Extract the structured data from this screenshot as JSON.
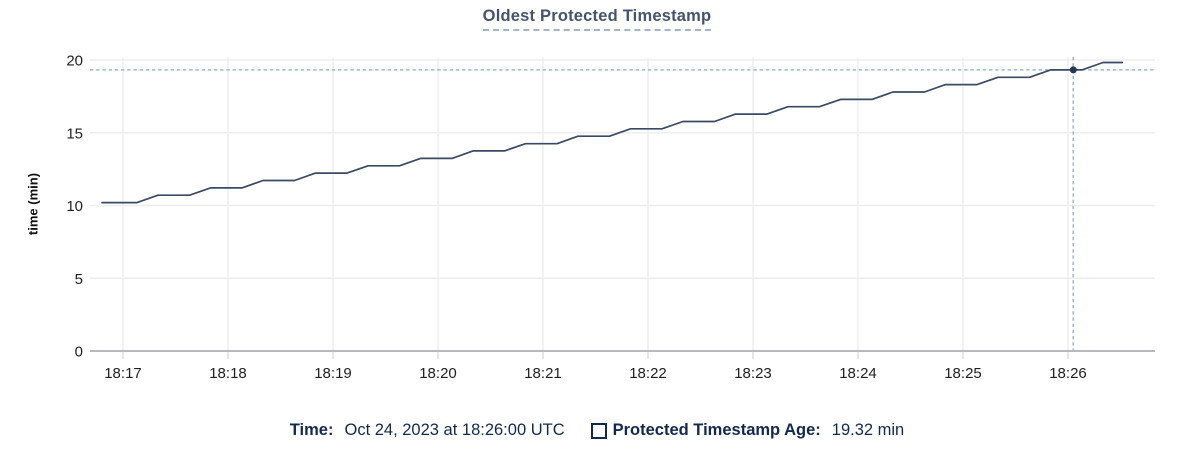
{
  "chart_data": {
    "type": "line",
    "title": "Oldest Protected Timestamp",
    "xlabel": "",
    "ylabel": "time (min)",
    "ylim": [
      0,
      20
    ],
    "grid": true,
    "y_ticks": [
      0,
      5,
      10,
      15,
      20
    ],
    "x_ticks": [
      "18:17",
      "18:18",
      "18:19",
      "18:20",
      "18:21",
      "18:22",
      "18:23",
      "18:24",
      "18:25",
      "18:26"
    ],
    "x_tick_unit": "minutes, Oct 24 2023 UTC",
    "series": [
      {
        "name": "Protected Timestamp Age",
        "unit": "min",
        "color": "#3a4a63",
        "points_t_sec_value": [
          [
            -12,
            10.2
          ],
          [
            8,
            10.2
          ],
          [
            20,
            10.71
          ],
          [
            38,
            10.71
          ],
          [
            50,
            11.21
          ],
          [
            68,
            11.21
          ],
          [
            80,
            11.72
          ],
          [
            98,
            11.72
          ],
          [
            110,
            12.23
          ],
          [
            128,
            12.23
          ],
          [
            140,
            12.73
          ],
          [
            158,
            12.73
          ],
          [
            170,
            13.24
          ],
          [
            188,
            13.24
          ],
          [
            200,
            13.75
          ],
          [
            218,
            13.75
          ],
          [
            230,
            14.25
          ],
          [
            248,
            14.25
          ],
          [
            260,
            14.76
          ],
          [
            278,
            14.76
          ],
          [
            290,
            15.27
          ],
          [
            308,
            15.27
          ],
          [
            320,
            15.77
          ],
          [
            338,
            15.77
          ],
          [
            350,
            16.28
          ],
          [
            368,
            16.28
          ],
          [
            380,
            16.79
          ],
          [
            398,
            16.79
          ],
          [
            410,
            17.29
          ],
          [
            428,
            17.29
          ],
          [
            440,
            17.8
          ],
          [
            458,
            17.8
          ],
          [
            470,
            18.31
          ],
          [
            488,
            18.31
          ],
          [
            500,
            18.81
          ],
          [
            518,
            18.81
          ],
          [
            530,
            19.32
          ],
          [
            548,
            19.32
          ],
          [
            560,
            19.83
          ],
          [
            571,
            19.83
          ]
        ]
      }
    ],
    "hover": {
      "t_sec": 543,
      "value": 19.32,
      "time_label": "Oct 24, 2023 at 18:26:00 UTC"
    },
    "legend_position": "bottom"
  },
  "footer": {
    "time_label": "Time:",
    "time_value": "Oct 24, 2023 at 18:26:00 UTC",
    "series_label": "Protected Timestamp Age:",
    "series_value": "19.32 min"
  },
  "colors": {
    "title": "#44536e",
    "underline": "#a5b3c9",
    "navy_text": "#12294d",
    "line": "#3a4a63",
    "dot": "#243650",
    "crosshair": "#9fb9c5",
    "gridline": "#ededed",
    "axis_line": "#b7babd",
    "axis_tick": "#dcdcdc",
    "tick_label": "#1f1f1f"
  }
}
